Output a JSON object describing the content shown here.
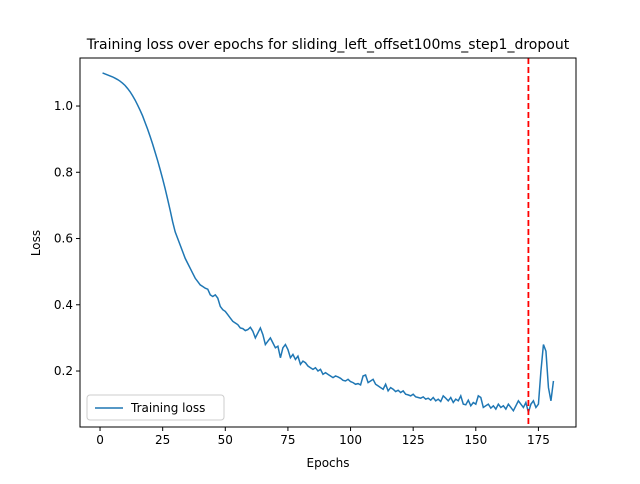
{
  "chart_data": {
    "type": "line",
    "title": "Training loss over epochs for sliding_left_offset100ms_step1_dropout",
    "xlabel": "Epochs",
    "ylabel": "Loss",
    "x": [
      1,
      2,
      3,
      4,
      5,
      6,
      7,
      8,
      9,
      10,
      11,
      12,
      13,
      14,
      15,
      16,
      17,
      18,
      19,
      20,
      21,
      22,
      23,
      24,
      25,
      26,
      27,
      28,
      29,
      30,
      31,
      32,
      33,
      34,
      35,
      36,
      37,
      38,
      39,
      40,
      41,
      42,
      43,
      44,
      45,
      46,
      47,
      48,
      49,
      50,
      51,
      52,
      53,
      54,
      55,
      56,
      57,
      58,
      59,
      60,
      61,
      62,
      63,
      64,
      65,
      66,
      67,
      68,
      69,
      70,
      71,
      72,
      73,
      74,
      75,
      76,
      77,
      78,
      79,
      80,
      81,
      82,
      83,
      84,
      85,
      86,
      87,
      88,
      89,
      90,
      91,
      92,
      93,
      94,
      95,
      96,
      97,
      98,
      99,
      100,
      101,
      102,
      103,
      104,
      105,
      106,
      107,
      108,
      109,
      110,
      111,
      112,
      113,
      114,
      115,
      116,
      117,
      118,
      119,
      120,
      121,
      122,
      123,
      124,
      125,
      126,
      127,
      128,
      129,
      130,
      131,
      132,
      133,
      134,
      135,
      136,
      137,
      138,
      139,
      140,
      141,
      142,
      143,
      144,
      145,
      146,
      147,
      148,
      149,
      150,
      151,
      152,
      153,
      154,
      155,
      156,
      157,
      158,
      159,
      160,
      161,
      162,
      163,
      164,
      165,
      166,
      167,
      168,
      169,
      170,
      171,
      172,
      173,
      174,
      175,
      176,
      177,
      178,
      179,
      180,
      181
    ],
    "series": [
      {
        "name": "Training loss",
        "color": "#1f77b4",
        "values": [
          1.1,
          1.097,
          1.094,
          1.091,
          1.088,
          1.084,
          1.08,
          1.075,
          1.069,
          1.062,
          1.053,
          1.043,
          1.031,
          1.018,
          1.003,
          0.987,
          0.97,
          0.95,
          0.93,
          0.908,
          0.885,
          0.86,
          0.835,
          0.808,
          0.78,
          0.75,
          0.718,
          0.685,
          0.65,
          0.62,
          0.6,
          0.58,
          0.56,
          0.54,
          0.525,
          0.51,
          0.495,
          0.48,
          0.47,
          0.46,
          0.455,
          0.45,
          0.447,
          0.43,
          0.425,
          0.43,
          0.42,
          0.395,
          0.385,
          0.38,
          0.37,
          0.36,
          0.35,
          0.345,
          0.34,
          0.33,
          0.328,
          0.322,
          0.325,
          0.332,
          0.32,
          0.3,
          0.315,
          0.33,
          0.31,
          0.28,
          0.29,
          0.3,
          0.285,
          0.27,
          0.275,
          0.24,
          0.27,
          0.28,
          0.265,
          0.24,
          0.25,
          0.235,
          0.245,
          0.22,
          0.23,
          0.225,
          0.215,
          0.21,
          0.205,
          0.21,
          0.2,
          0.205,
          0.19,
          0.195,
          0.19,
          0.185,
          0.18,
          0.185,
          0.182,
          0.178,
          0.172,
          0.17,
          0.175,
          0.168,
          0.165,
          0.16,
          0.162,
          0.158,
          0.185,
          0.188,
          0.165,
          0.17,
          0.175,
          0.16,
          0.155,
          0.15,
          0.145,
          0.16,
          0.14,
          0.15,
          0.145,
          0.138,
          0.142,
          0.135,
          0.14,
          0.13,
          0.128,
          0.125,
          0.13,
          0.122,
          0.12,
          0.118,
          0.122,
          0.115,
          0.118,
          0.112,
          0.12,
          0.11,
          0.115,
          0.108,
          0.125,
          0.118,
          0.11,
          0.12,
          0.105,
          0.115,
          0.11,
          0.125,
          0.1,
          0.098,
          0.112,
          0.095,
          0.105,
          0.1,
          0.125,
          0.12,
          0.09,
          0.095,
          0.1,
          0.088,
          0.095,
          0.085,
          0.1,
          0.09,
          0.095,
          0.085,
          0.1,
          0.09,
          0.08,
          0.095,
          0.11,
          0.1,
          0.09,
          0.105,
          0.075,
          0.1,
          0.11,
          0.09,
          0.1,
          0.2,
          0.28,
          0.26,
          0.15,
          0.11,
          0.17
        ]
      }
    ],
    "vline": {
      "x": 171,
      "color": "#ff0000"
    },
    "xlim": [
      -8,
      190
    ],
    "ylim": [
      0.031,
      1.145
    ],
    "xticks": [
      0,
      25,
      50,
      75,
      100,
      125,
      150,
      175
    ],
    "yticks": [
      0.2,
      0.4,
      0.6,
      0.8,
      {
        "value": 1,
        "label": "1.0"
      }
    ],
    "legend": "lower left",
    "grid": false
  }
}
